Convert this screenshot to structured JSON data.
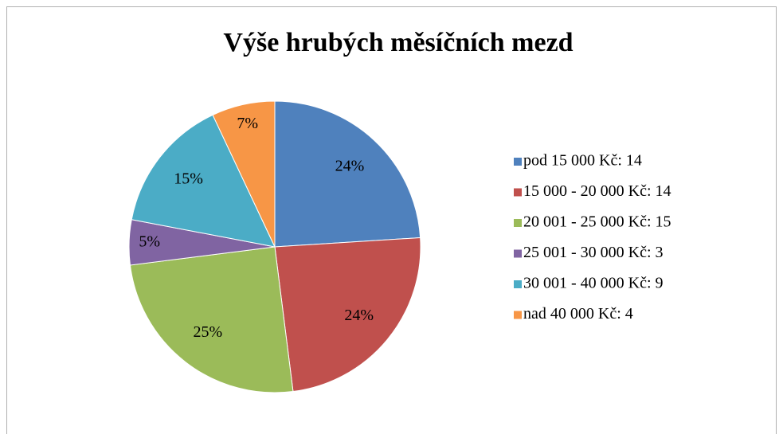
{
  "chart_data": {
    "type": "pie",
    "title": "Výše hrubých měsíčních mezd",
    "categories": [
      "pod 15 000 Kč: 14",
      "15 000 - 20 000 Kč: 14",
      "20 001 - 25 000 Kč: 15",
      "25 001 - 30 000 Kč: 3",
      "30 001 - 40 000 Kč: 9",
      "nad 40 000 Kč: 4"
    ],
    "values": [
      24,
      24,
      25,
      5,
      15,
      7
    ],
    "value_labels": [
      "24%",
      "24%",
      "25%",
      "5%",
      "15%",
      "7%"
    ],
    "colors": [
      "#4F81BD",
      "#C0504D",
      "#9BBB59",
      "#8064A2",
      "#4BACC6",
      "#F79646"
    ],
    "legend": "right"
  }
}
